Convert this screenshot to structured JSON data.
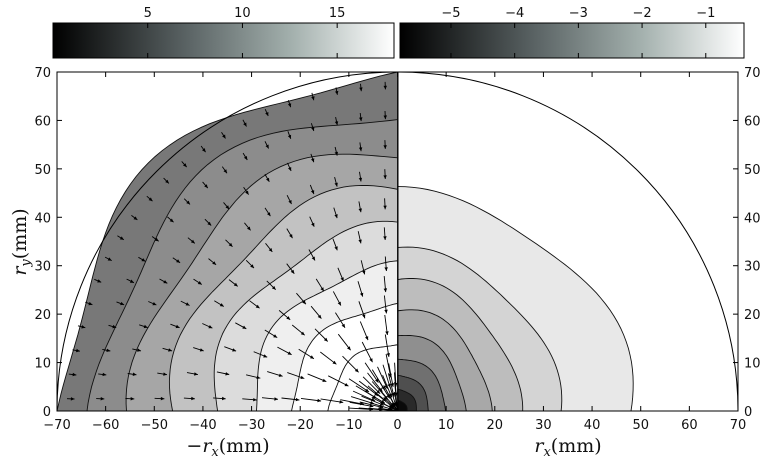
{
  "chart_data": {
    "type": "contour",
    "x_range": [
      -70,
      70
    ],
    "y_range": [
      0,
      70
    ],
    "x_ticks": [
      -70,
      -60,
      -50,
      -40,
      -30,
      -20,
      -10,
      0,
      10,
      20,
      30,
      40,
      50,
      60,
      70
    ],
    "y_ticks": [
      0,
      10,
      20,
      30,
      40,
      50,
      60,
      70
    ],
    "xlabel_left": {
      "sign": "−",
      "symbol": "r",
      "sub": "x",
      "unit": "(mm)"
    },
    "xlabel_right": {
      "symbol": "r",
      "sub": "x",
      "unit": "(mm)"
    },
    "ylabel": {
      "symbol": "r",
      "sub": "y",
      "unit": "(mm)"
    },
    "left_panel": {
      "colorbar_range": [
        0,
        18
      ],
      "colorbar_ticks": [
        5,
        10,
        15
      ],
      "colormap": [
        "#000000",
        "#5c6566",
        "#a3b0ad",
        "#ffffff"
      ],
      "contour_radii_mm": [
        70,
        62,
        54,
        46,
        38,
        30,
        22,
        14
      ],
      "contour_fills": [
        "#787878",
        "#8c8c8c",
        "#a6a6a6",
        "#c2c2c2",
        "#dcdcdc",
        "#efefef",
        "#ffffff",
        "#ffffff"
      ],
      "arrows": "radially inward quiver field"
    },
    "right_panel": {
      "colorbar_range": [
        -5.8,
        -0.4
      ],
      "colorbar_ticks": [
        -5,
        -4,
        -3,
        -2,
        -1
      ],
      "colormap": [
        "#000000",
        "#5c6566",
        "#a3b0ad",
        "#ffffff"
      ],
      "contour_levels": [
        {
          "rx": 48,
          "ry": 45,
          "fill": "#e8e8e8"
        },
        {
          "rx": 33,
          "ry": 33,
          "fill": "#d4d4d4"
        },
        {
          "rx": 25,
          "ry": 27,
          "fill": "#bdbdbd"
        },
        {
          "rx": 19,
          "ry": 21,
          "fill": "#a8a8a8"
        },
        {
          "rx": 14,
          "ry": 16,
          "fill": "#8f8f8f"
        },
        {
          "rx": 10,
          "ry": 11,
          "fill": "#707070"
        },
        {
          "rx": 6.5,
          "ry": 7.5,
          "fill": "#4f4f4f"
        },
        {
          "rx": 4,
          "ry": 4.5,
          "fill": "#2a2a2a"
        },
        {
          "rx": 2,
          "ry": 2.2,
          "fill": "#0a0a0a"
        }
      ]
    }
  }
}
